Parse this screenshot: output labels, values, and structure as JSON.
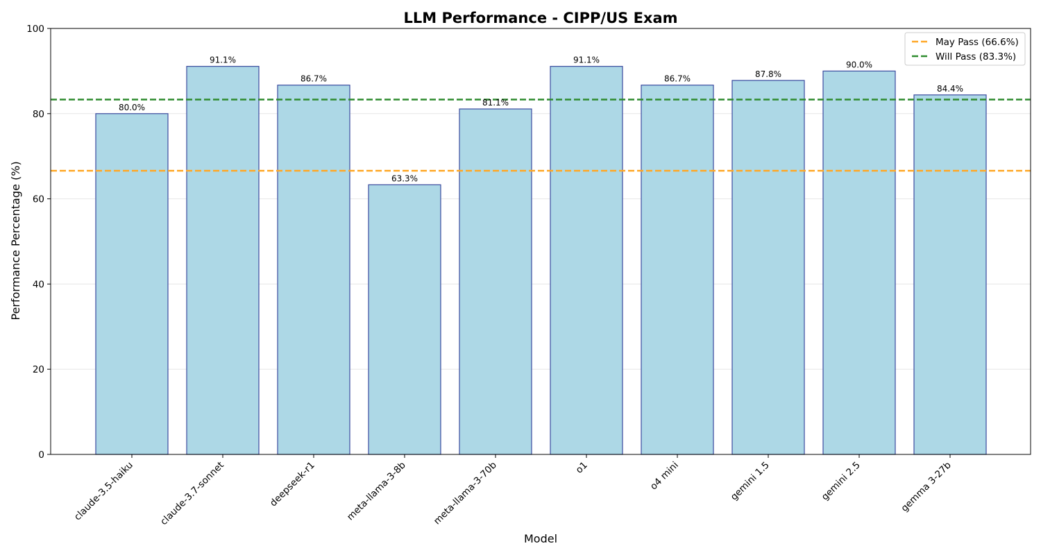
{
  "chart_data": {
    "type": "bar",
    "title": "LLM Performance - CIPP/US Exam",
    "xlabel": "Model",
    "ylabel": "Performance Percentage (%)",
    "ylim": [
      0,
      100
    ],
    "yticks": [
      0,
      20,
      40,
      60,
      80,
      100
    ],
    "grid": "y",
    "categories": [
      "claude-3.5-haiku",
      "claude-3.7-sonnet",
      "deepseek-r1",
      "meta-llama-3-8b",
      "meta-llama-3-70b",
      "o1",
      "o4 mini",
      "gemini 1.5",
      "gemini 2.5",
      "gemma 3-27b"
    ],
    "values": [
      80.0,
      91.1,
      86.7,
      63.3,
      81.1,
      91.1,
      86.7,
      87.8,
      90.0,
      84.4
    ],
    "data_labels": [
      "80.0%",
      "91.1%",
      "86.7%",
      "63.3%",
      "81.1%",
      "91.1%",
      "86.7%",
      "87.8%",
      "90.0%",
      "84.4%"
    ],
    "bar_fill": "#add8e6",
    "bar_edge": "#3a4a9e",
    "reference_lines": [
      {
        "name": "May Pass (66.6%)",
        "value": 66.6,
        "color": "#ffa726",
        "style": "dashed"
      },
      {
        "name": "Will Pass (83.3%)",
        "value": 83.3,
        "color": "#2e8b2e",
        "style": "dashed"
      }
    ],
    "legend": {
      "placement": "top-right"
    }
  }
}
